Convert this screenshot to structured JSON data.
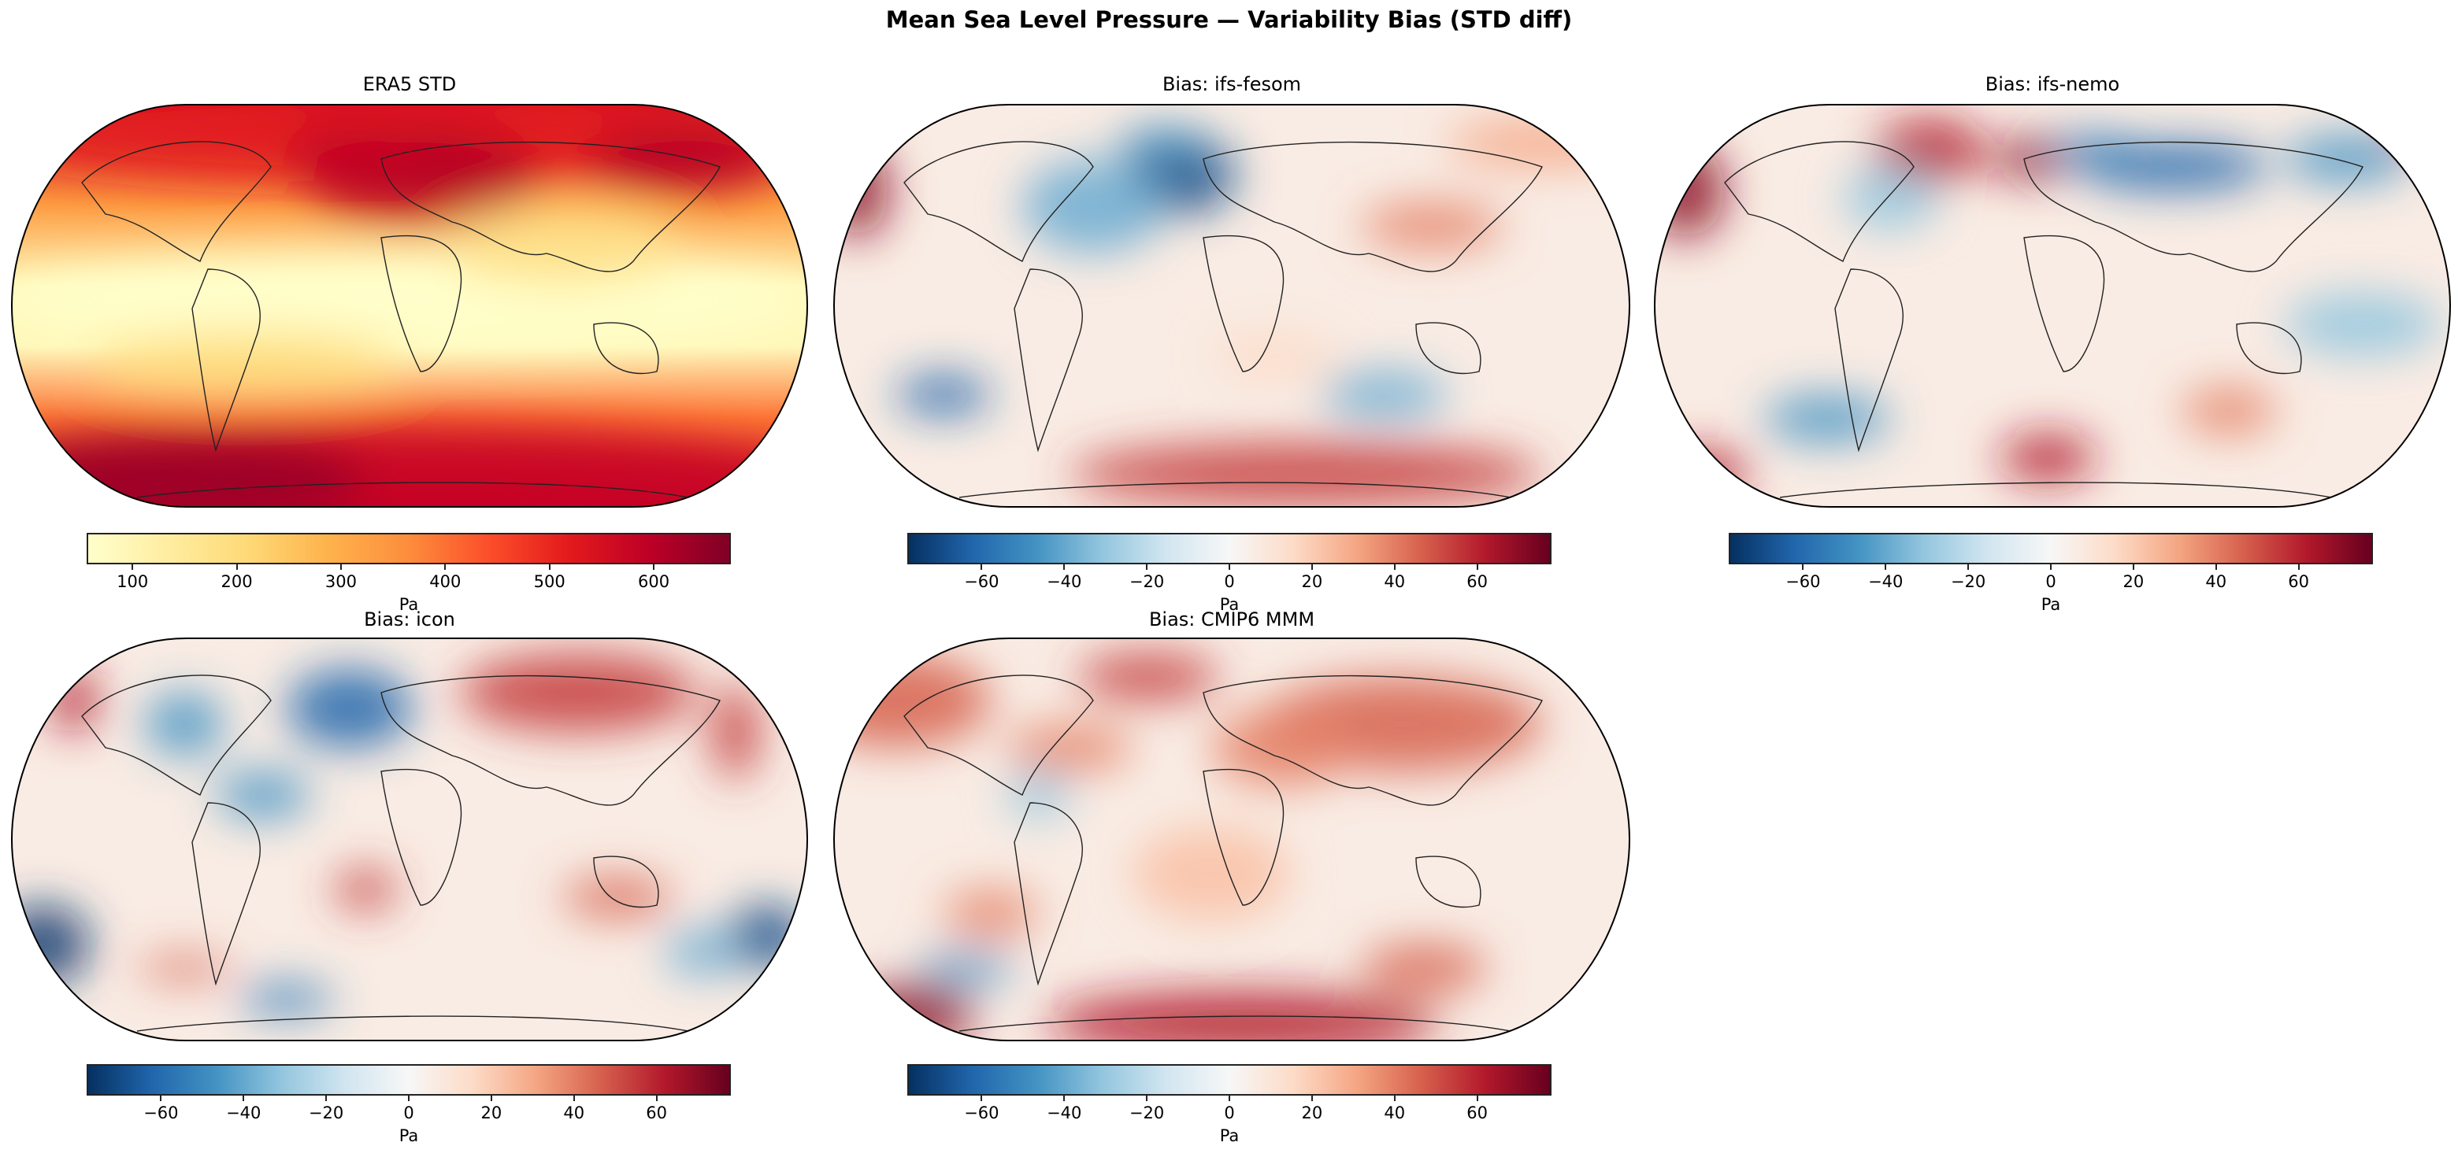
{
  "figure": {
    "title": "Mean Sea Level Pressure — Variability Bias (STD diff)"
  },
  "colormaps": {
    "YlOrRd": [
      "#ffffcc",
      "#ffeda0",
      "#fed976",
      "#feb24c",
      "#fd8d3c",
      "#fc4e2a",
      "#e31a1c",
      "#bd0026",
      "#800026"
    ],
    "RdBu_r": [
      "#053061",
      "#2166ac",
      "#4393c3",
      "#92c5de",
      "#d1e5f0",
      "#f7f7f7",
      "#fddbc7",
      "#f4a582",
      "#d6604d",
      "#b2182b",
      "#67001f"
    ]
  },
  "panels": [
    {
      "title": "ERA5 STD",
      "cmap": "YlOrRd",
      "range": [
        56,
        674
      ],
      "ticks": [
        "100",
        "200",
        "300",
        "400",
        "500",
        "600"
      ],
      "tick_values": [
        100,
        200,
        300,
        400,
        500,
        600
      ],
      "unit": "Pa"
    },
    {
      "title": "Bias: ifs-fesom",
      "cmap": "RdBu_r",
      "range": [
        -78,
        78
      ],
      "ticks": [
        "−60",
        "−40",
        "−20",
        "0",
        "20",
        "40",
        "60"
      ],
      "tick_values": [
        -60,
        -40,
        -20,
        0,
        20,
        40,
        60
      ],
      "unit": "Pa"
    },
    {
      "title": "Bias: ifs-nemo",
      "cmap": "RdBu_r",
      "range": [
        -78,
        78
      ],
      "ticks": [
        "−60",
        "−40",
        "−20",
        "0",
        "20",
        "40",
        "60"
      ],
      "tick_values": [
        -60,
        -40,
        -20,
        0,
        20,
        40,
        60
      ],
      "unit": "Pa"
    },
    {
      "title": "Bias: icon",
      "cmap": "RdBu_r",
      "range": [
        -78,
        78
      ],
      "ticks": [
        "−60",
        "−40",
        "−20",
        "0",
        "20",
        "40",
        "60"
      ],
      "tick_values": [
        -60,
        -40,
        -20,
        0,
        20,
        40,
        60
      ],
      "unit": "Pa"
    },
    {
      "title": "Bias: CMIP6 MMM",
      "cmap": "RdBu_r",
      "range": [
        -78,
        78
      ],
      "ticks": [
        "−60",
        "−40",
        "−20",
        "0",
        "20",
        "40",
        "60"
      ],
      "tick_values": [
        -60,
        -40,
        -20,
        0,
        20,
        40,
        60
      ],
      "unit": "Pa"
    }
  ],
  "chart_data": {
    "type": "heatmap",
    "title": "Mean Sea Level Pressure — Variability Bias (STD diff)",
    "projection": "Robinson",
    "panels": [
      {
        "title": "ERA5 STD",
        "colorbar_label": "Pa",
        "colorbar_range": [
          56,
          674
        ],
        "cmap": "YlOrRd"
      },
      {
        "title": "Bias: ifs-fesom",
        "colorbar_label": "Pa",
        "colorbar_range": [
          -78,
          78
        ],
        "cmap": "RdBu_r"
      },
      {
        "title": "Bias: ifs-nemo",
        "colorbar_label": "Pa",
        "colorbar_range": [
          -78,
          78
        ],
        "cmap": "RdBu_r"
      },
      {
        "title": "Bias: icon",
        "colorbar_label": "Pa",
        "colorbar_range": [
          -78,
          78
        ],
        "cmap": "RdBu_r"
      },
      {
        "title": "Bias: CMIP6 MMM",
        "colorbar_label": "Pa",
        "colorbar_range": [
          -78,
          78
        ],
        "cmap": "RdBu_r"
      }
    ]
  }
}
